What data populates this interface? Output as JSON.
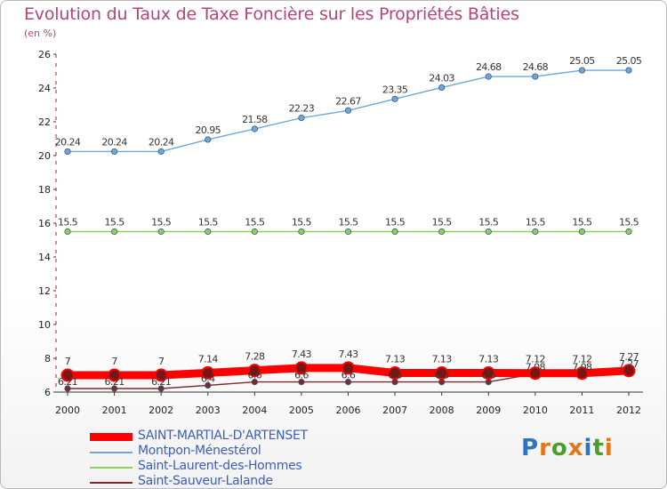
{
  "header": {
    "title": "Evolution du Taux de Taxe Foncière sur les Propriétés Bâties",
    "unit": "(en %)"
  },
  "logo": {
    "text": "Proxiti",
    "colors": [
      "#2e74c4",
      "#e0781b",
      "#4a9e2a",
      "#e0781b",
      "#2e74c4",
      "#4a9e2a",
      "#e0781b"
    ]
  },
  "chart_data": {
    "type": "line",
    "title": "Evolution du Taux de Taxe Foncière sur les Propriétés Bâties",
    "ylabel": "(en %)",
    "xlabel": "",
    "ylim": [
      6,
      26
    ],
    "yticks": [
      6,
      8,
      10,
      12,
      14,
      16,
      18,
      20,
      22,
      24,
      26
    ],
    "grid": false,
    "legend_position": "bottom-left",
    "x": [
      "2000",
      "2001",
      "2002",
      "2003",
      "2004",
      "2005",
      "2006",
      "2007",
      "2008",
      "2009",
      "2010",
      "2011",
      "2012"
    ],
    "series": [
      {
        "name": "Saint-Sauveur-Lalande",
        "color": "#7a2a2e",
        "values": [
          6.21,
          6.21,
          6.21,
          6.4,
          6.6,
          6.6,
          6.6,
          6.6,
          6.6,
          6.6,
          7.08,
          7.08,
          7.27
        ],
        "labels": [
          "6.21",
          "6.21",
          "6.21",
          "6.4",
          "6.6",
          "6.6",
          "6.6",
          "6.6",
          "6.6",
          "6.6",
          "7.08",
          "7.08",
          "7.27"
        ]
      },
      {
        "name": "Saint-Laurent-des-Hommes",
        "color": "#8fd05a",
        "values": [
          15.5,
          15.5,
          15.5,
          15.5,
          15.5,
          15.5,
          15.5,
          15.5,
          15.5,
          15.5,
          15.5,
          15.5,
          15.5
        ],
        "labels": [
          "15.5",
          "15.5",
          "15.5",
          "15.5",
          "15.5",
          "15.5",
          "15.5",
          "15.5",
          "15.5",
          "15.5",
          "15.5",
          "15.5",
          "15.5"
        ]
      },
      {
        "name": "Montpon-Ménestérol",
        "color": "#6fa8d6",
        "values": [
          20.24,
          20.24,
          20.24,
          20.95,
          21.58,
          22.23,
          22.67,
          23.35,
          24.03,
          24.68,
          24.68,
          25.05,
          25.05
        ],
        "labels": [
          "20.24",
          "20.24",
          "20.24",
          "20.95",
          "21.58",
          "22.23",
          "22.67",
          "23.35",
          "24.03",
          "24.68",
          "24.68",
          "25.05",
          "25.05"
        ]
      },
      {
        "name": "SAINT-MARTIAL-D'ARTENSET",
        "color": "#ff0000",
        "values": [
          7,
          7,
          7,
          7.14,
          7.28,
          7.43,
          7.43,
          7.13,
          7.13,
          7.13,
          7.12,
          7.12,
          7.27
        ],
        "labels": [
          "7",
          "7",
          "7",
          "7.14",
          "7.28",
          "7.43",
          "7.43",
          "7.13",
          "7.13",
          "7.13",
          "7.12",
          "7.12",
          "7.27"
        ]
      }
    ]
  }
}
